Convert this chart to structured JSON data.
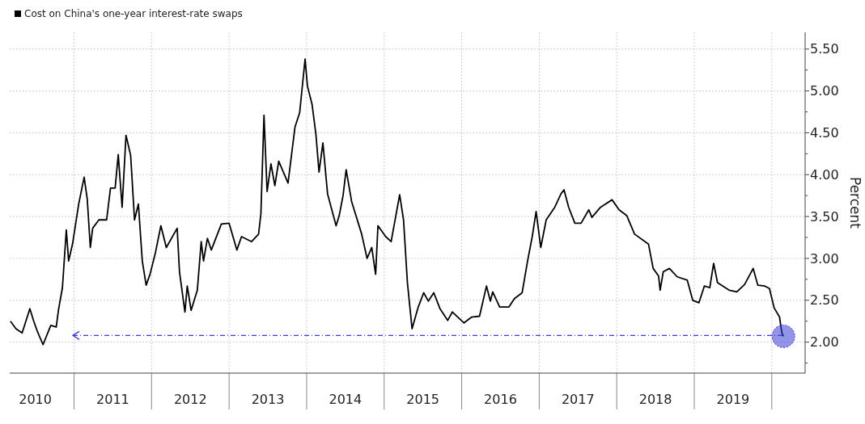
{
  "chart_data": {
    "type": "line",
    "ylabel": "Percent",
    "series": [
      {
        "name": "Cost on China's one-year interest-rate swaps",
        "color": "#000000",
        "x": [
          2010.18,
          2010.25,
          2010.33,
          2010.43,
          2010.48,
          2010.53,
          2010.6,
          2010.7,
          2010.77,
          2010.8,
          2010.85,
          2010.9,
          2010.93,
          2010.98,
          2011.06,
          2011.13,
          2011.17,
          2011.21,
          2011.24,
          2011.32,
          2011.42,
          2011.47,
          2011.53,
          2011.57,
          2011.62,
          2011.67,
          2011.73,
          2011.78,
          2011.83,
          2011.88,
          2011.93,
          2011.98,
          2012.05,
          2012.12,
          2012.19,
          2012.33,
          2012.36,
          2012.43,
          2012.46,
          2012.51,
          2012.59,
          2012.64,
          2012.67,
          2012.72,
          2012.77,
          2012.9,
          2013.0,
          2013.1,
          2013.16,
          2013.29,
          2013.38,
          2013.41,
          2013.45,
          2013.49,
          2013.54,
          2013.59,
          2013.64,
          2013.76,
          2013.85,
          2013.91,
          2013.98,
          2014.01,
          2014.07,
          2014.12,
          2014.16,
          2014.21,
          2014.27,
          2014.38,
          2014.42,
          2014.47,
          2014.51,
          2014.58,
          2014.71,
          2014.78,
          2014.84,
          2014.89,
          2014.92,
          2015.02,
          2015.09,
          2015.2,
          2015.25,
          2015.3,
          2015.36,
          2015.44,
          2015.51,
          2015.57,
          2015.64,
          2015.72,
          2015.82,
          2015.88,
          2016.03,
          2016.13,
          2016.23,
          2016.32,
          2016.37,
          2016.4,
          2016.49,
          2016.61,
          2016.68,
          2016.78,
          2016.85,
          2016.91,
          2016.96,
          2017.02,
          2017.09,
          2017.2,
          2017.28,
          2017.32,
          2017.38,
          2017.46,
          2017.54,
          2017.64,
          2017.68,
          2017.79,
          2017.94,
          2018.03,
          2018.13,
          2018.23,
          2018.41,
          2018.47,
          2018.54,
          2018.56,
          2018.6,
          2018.68,
          2018.78,
          2018.91,
          2018.98,
          2019.06,
          2019.13,
          2019.2,
          2019.25,
          2019.3,
          2019.45,
          2019.55,
          2019.65,
          2019.76,
          2019.82,
          2019.91,
          2019.97,
          2020.03,
          2020.1,
          2020.13,
          2020.15
        ],
        "values": [
          2.25,
          2.16,
          2.11,
          2.4,
          2.25,
          2.12,
          1.97,
          2.2,
          2.18,
          2.39,
          2.65,
          3.34,
          2.97,
          3.17,
          3.65,
          3.97,
          3.71,
          3.13,
          3.36,
          3.46,
          3.46,
          3.84,
          3.84,
          4.24,
          3.61,
          4.47,
          4.23,
          3.46,
          3.65,
          2.97,
          2.68,
          2.81,
          3.07,
          3.39,
          3.13,
          3.36,
          2.84,
          2.36,
          2.67,
          2.38,
          2.62,
          3.2,
          2.97,
          3.24,
          3.1,
          3.41,
          3.42,
          3.1,
          3.26,
          3.2,
          3.29,
          3.53,
          4.71,
          3.8,
          4.13,
          3.87,
          4.16,
          3.9,
          4.57,
          4.74,
          5.38,
          5.06,
          4.84,
          4.48,
          4.03,
          4.38,
          3.77,
          3.39,
          3.51,
          3.75,
          4.06,
          3.68,
          3.29,
          3.0,
          3.13,
          2.81,
          3.39,
          3.26,
          3.2,
          3.76,
          3.46,
          2.71,
          2.16,
          2.42,
          2.59,
          2.49,
          2.59,
          2.4,
          2.26,
          2.36,
          2.23,
          2.3,
          2.31,
          2.67,
          2.49,
          2.6,
          2.42,
          2.42,
          2.52,
          2.59,
          2.97,
          3.26,
          3.56,
          3.13,
          3.46,
          3.61,
          3.77,
          3.82,
          3.61,
          3.42,
          3.42,
          3.58,
          3.49,
          3.61,
          3.7,
          3.58,
          3.51,
          3.29,
          3.17,
          2.88,
          2.79,
          2.62,
          2.84,
          2.88,
          2.78,
          2.74,
          2.5,
          2.47,
          2.67,
          2.65,
          2.94,
          2.71,
          2.62,
          2.6,
          2.69,
          2.88,
          2.68,
          2.67,
          2.64,
          2.41,
          2.3,
          2.11,
          2.07
        ]
      }
    ],
    "xlim": [
      2010.17,
      2020.43
    ],
    "xticks": [
      {
        "value": 2010.5,
        "label": "2010"
      },
      {
        "value": 2011,
        "label": null
      },
      {
        "value": 2011.5,
        "label": "2011"
      },
      {
        "value": 2012,
        "label": null
      },
      {
        "value": 2012.5,
        "label": "2012"
      },
      {
        "value": 2013,
        "label": null
      },
      {
        "value": 2013.5,
        "label": "2013"
      },
      {
        "value": 2014,
        "label": null
      },
      {
        "value": 2014.5,
        "label": "2014"
      },
      {
        "value": 2015,
        "label": null
      },
      {
        "value": 2015.5,
        "label": "2015"
      },
      {
        "value": 2016,
        "label": null
      },
      {
        "value": 2016.5,
        "label": "2016"
      },
      {
        "value": 2017,
        "label": null
      },
      {
        "value": 2017.5,
        "label": "2017"
      },
      {
        "value": 2018,
        "label": null
      },
      {
        "value": 2018.5,
        "label": "2018"
      },
      {
        "value": 2019,
        "label": null
      },
      {
        "value": 2019.5,
        "label": "2019"
      },
      {
        "value": 2020,
        "label": null
      }
    ],
    "ylim": [
      1.63,
      5.7
    ],
    "yticks": [
      {
        "value": 1.75,
        "label": null
      },
      {
        "value": 2,
        "label": "2.00"
      },
      {
        "value": 2.25,
        "label": null
      },
      {
        "value": 2.5,
        "label": "2.50"
      },
      {
        "value": 2.75,
        "label": null
      },
      {
        "value": 3,
        "label": "3.00"
      },
      {
        "value": 3.25,
        "label": null
      },
      {
        "value": 3.5,
        "label": "3.50"
      },
      {
        "value": 3.75,
        "label": null
      },
      {
        "value": 4,
        "label": "4.00"
      },
      {
        "value": 4.25,
        "label": null
      },
      {
        "value": 4.5,
        "label": "4.50"
      },
      {
        "value": 4.75,
        "label": null
      },
      {
        "value": 5,
        "label": "5.00"
      },
      {
        "value": 5.25,
        "label": null
      },
      {
        "value": 5.5,
        "label": "5.50"
      }
    ],
    "ref_lines": [
      {
        "axis": "y",
        "value": 2.08,
        "color": "#3b3bd6",
        "line_style": "dashed"
      }
    ],
    "grid": true,
    "legend": "top left",
    "line_style": "solid"
  }
}
